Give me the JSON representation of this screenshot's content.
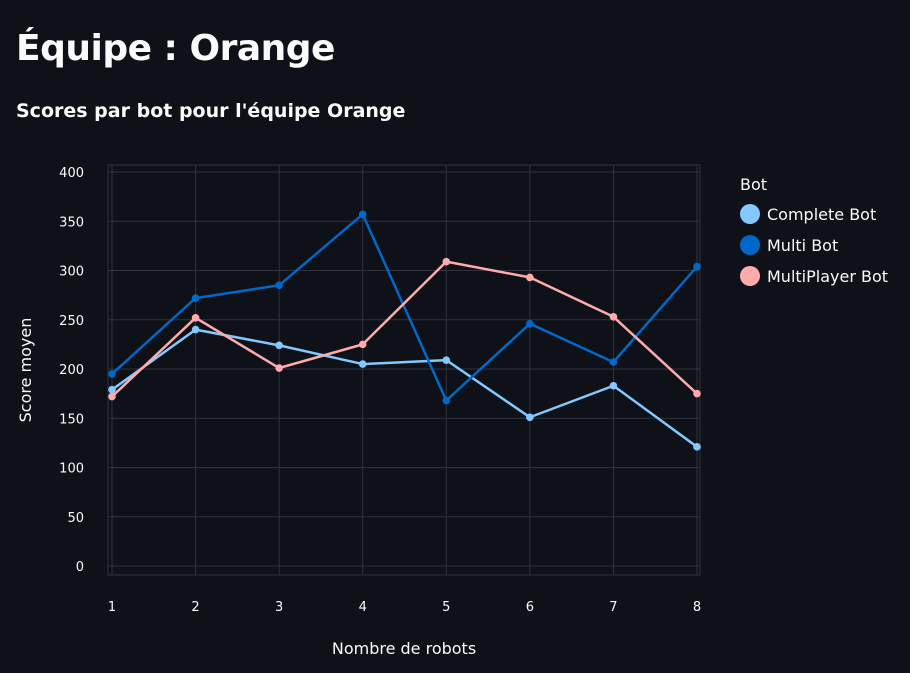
{
  "page": {
    "title": "Équipe : Orange"
  },
  "colors": {
    "background": "#0e1117",
    "grid": "#31333f",
    "text": "#fafafa"
  },
  "chart_data": {
    "type": "line",
    "title": "Scores par bot pour l'équipe Orange",
    "xlabel": "Nombre de robots",
    "ylabel": "Score moyen",
    "x": [
      1,
      2,
      3,
      4,
      5,
      6,
      7,
      8
    ],
    "xlim": [
      1,
      8
    ],
    "ylim": [
      0,
      400
    ],
    "yticks": [
      0,
      50,
      100,
      150,
      200,
      250,
      300,
      350,
      400
    ],
    "grid": true,
    "legend": {
      "title": "Bot",
      "placement": "right"
    },
    "series": [
      {
        "name": "Complete Bot",
        "color": "#83c9ff",
        "values": [
          179,
          240,
          224,
          205,
          209,
          151,
          183,
          121
        ]
      },
      {
        "name": "Multi Bot",
        "color": "#0068c9",
        "values": [
          195,
          272,
          285,
          357,
          168,
          246,
          207,
          304
        ]
      },
      {
        "name": "MultiPlayer Bot",
        "color": "#ffabab",
        "values": [
          172,
          252,
          201,
          225,
          309,
          293,
          253,
          175
        ]
      }
    ]
  }
}
